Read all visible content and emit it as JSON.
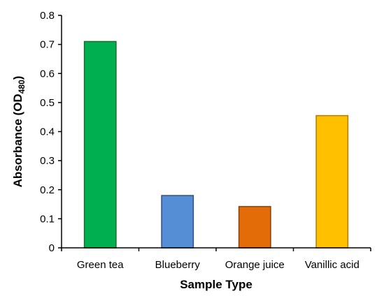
{
  "chart_data": {
    "type": "bar",
    "title": "",
    "xlabel": "Sample Type",
    "ylabel": {
      "main": "Absorbance (OD",
      "sub": "480",
      "end": ")"
    },
    "ylim": [
      0,
      0.8
    ],
    "yticks": [
      "0",
      "0.1",
      "0.2",
      "0.3",
      "0.4",
      "0.5",
      "0.6",
      "0.7",
      "0.8"
    ],
    "grid": false,
    "legend": "none",
    "categories": [
      "Green tea",
      "Blueberry",
      "Orange juice",
      "Vanillic acid"
    ],
    "values": [
      0.71,
      0.18,
      0.142,
      0.455
    ],
    "colors": [
      {
        "fill": "#00b050",
        "stroke": "#1a6b2e"
      },
      {
        "fill": "#558ed5",
        "stroke": "#2f4f7f"
      },
      {
        "fill": "#e36c09",
        "stroke": "#8a3f05"
      },
      {
        "fill": "#ffc000",
        "stroke": "#b07d00"
      }
    ]
  }
}
